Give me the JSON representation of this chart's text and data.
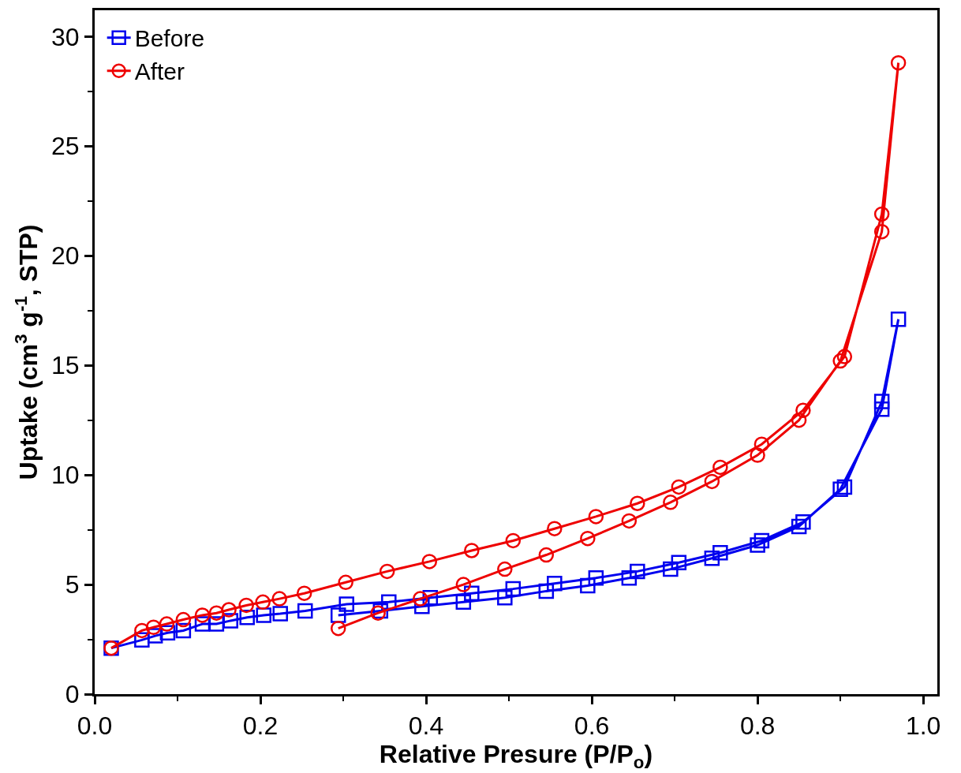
{
  "chart_data": {
    "type": "line",
    "xlabel": "Relative Presure (P/P$_{o}$)",
    "ylabel": "Uptake (cm$^{3}$ g$^{-1}$, STP)",
    "xlim": [
      0,
      1.017
    ],
    "ylim": [
      0,
      31.2
    ],
    "xticks": [
      {
        "value": 0,
        "label": "0.0"
      },
      {
        "value": 0.2,
        "label": "0.2"
      },
      {
        "value": 0.4,
        "label": "0.4"
      },
      {
        "value": 0.6,
        "label": "0.6"
      },
      {
        "value": 0.8,
        "label": "0.8"
      },
      {
        "value": 1.0,
        "label": "1.0"
      }
    ],
    "yticks": [
      0,
      5,
      10,
      15,
      20,
      25,
      30
    ],
    "legend": "top left",
    "line_style": "solid",
    "series": [
      {
        "name": "Before",
        "color": "#0000ee",
        "marker": "square",
        "x": [
          0.02,
          0.057,
          0.073,
          0.088,
          0.107,
          0.13,
          0.147,
          0.164,
          0.184,
          0.204,
          0.224,
          0.254,
          0.304,
          0.355,
          0.405,
          0.455,
          0.505,
          0.555,
          0.605,
          0.655,
          0.705,
          0.755,
          0.805,
          0.855,
          0.905,
          0.95,
          0.97,
          0.95,
          0.9,
          0.85,
          0.8,
          0.745,
          0.695,
          0.645,
          0.595,
          0.545,
          0.495,
          0.445,
          0.395,
          0.345,
          0.294
        ],
        "values": [
          2.1,
          2.47,
          2.66,
          2.8,
          2.9,
          3.2,
          3.2,
          3.35,
          3.5,
          3.6,
          3.67,
          3.8,
          4.1,
          4.2,
          4.4,
          4.6,
          4.8,
          5.05,
          5.3,
          5.6,
          6.0,
          6.45,
          7.0,
          7.85,
          9.45,
          13.35,
          17.1,
          13.0,
          9.35,
          7.65,
          6.8,
          6.2,
          5.7,
          5.3,
          4.95,
          4.7,
          4.4,
          4.2,
          4.0,
          3.8,
          3.6
        ]
      },
      {
        "name": "After",
        "color": "#ee0000",
        "marker": "circle",
        "x": [
          0.02,
          0.057,
          0.071,
          0.087,
          0.107,
          0.13,
          0.147,
          0.162,
          0.183,
          0.203,
          0.223,
          0.253,
          0.303,
          0.353,
          0.404,
          0.455,
          0.505,
          0.555,
          0.605,
          0.655,
          0.705,
          0.755,
          0.805,
          0.855,
          0.905,
          0.95,
          0.97,
          0.95,
          0.9,
          0.85,
          0.8,
          0.745,
          0.695,
          0.645,
          0.595,
          0.545,
          0.495,
          0.445,
          0.393,
          0.342,
          0.294
        ],
        "values": [
          2.1,
          2.9,
          3.05,
          3.2,
          3.4,
          3.6,
          3.7,
          3.85,
          4.05,
          4.2,
          4.35,
          4.6,
          5.1,
          5.6,
          6.05,
          6.55,
          7.0,
          7.55,
          8.1,
          8.7,
          9.45,
          10.35,
          11.4,
          12.95,
          15.4,
          21.9,
          28.8,
          21.1,
          15.2,
          12.5,
          10.9,
          9.7,
          8.75,
          7.9,
          7.1,
          6.35,
          5.7,
          5.0,
          4.35,
          3.7,
          3.0
        ]
      }
    ]
  }
}
